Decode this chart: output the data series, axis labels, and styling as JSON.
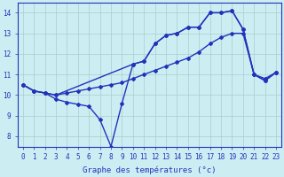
{
  "title": "Graphe des températures (°c)",
  "x_labels": [
    "0",
    "1",
    "2",
    "3",
    "4",
    "5",
    "6",
    "7",
    "8",
    "9",
    "10",
    "11",
    "12",
    "13",
    "14",
    "15",
    "16",
    "17",
    "18",
    "19",
    "20",
    "21",
    "22",
    "23"
  ],
  "line1": {
    "x": [
      0,
      1,
      2,
      3,
      4,
      5,
      6,
      7,
      8,
      9,
      10,
      11,
      12,
      13,
      14,
      15,
      16,
      17,
      18,
      19,
      20,
      21,
      22,
      23
    ],
    "y": [
      10.5,
      10.2,
      10.1,
      10.0,
      10.1,
      10.2,
      10.3,
      10.4,
      10.5,
      10.6,
      10.8,
      11.0,
      11.2,
      11.4,
      11.6,
      11.8,
      12.1,
      12.5,
      12.8,
      13.0,
      13.0,
      11.0,
      10.8,
      11.1
    ],
    "color": "#2233bb",
    "marker": "D",
    "markersize": 2.0,
    "linewidth": 1.0
  },
  "line2": {
    "x": [
      0,
      1,
      2,
      3,
      10,
      11,
      12,
      13,
      14,
      15,
      16,
      17,
      18,
      19,
      20,
      21,
      22,
      23
    ],
    "y": [
      10.5,
      10.2,
      10.1,
      10.0,
      11.5,
      11.65,
      12.5,
      12.9,
      13.0,
      13.3,
      13.3,
      14.0,
      14.0,
      14.1,
      13.2,
      11.0,
      10.7,
      11.1
    ],
    "color": "#2233bb",
    "marker": "D",
    "markersize": 2.0,
    "linewidth": 1.0
  },
  "line3": {
    "x": [
      0,
      1,
      2,
      3,
      4,
      5,
      6,
      7,
      8,
      9,
      10,
      11,
      12,
      13,
      14,
      15,
      16,
      17,
      18,
      19,
      20,
      21,
      22,
      23
    ],
    "y": [
      10.5,
      10.2,
      10.1,
      9.8,
      9.65,
      9.55,
      9.45,
      8.8,
      7.5,
      9.6,
      11.5,
      11.65,
      12.5,
      12.9,
      13.0,
      13.3,
      13.3,
      14.0,
      14.0,
      14.1,
      13.2,
      11.0,
      10.7,
      11.1
    ],
    "color": "#2233bb",
    "marker": "D",
    "markersize": 2.0,
    "linewidth": 1.0
  },
  "ylim": [
    7.5,
    14.5
  ],
  "yticks": [
    8,
    9,
    10,
    11,
    12,
    13,
    14
  ],
  "xlim": [
    -0.5,
    23.5
  ],
  "bg_color": "#cceef2",
  "grid_color": "#aacccc",
  "axis_color": "#2233bb",
  "label_color": "#2233bb",
  "tick_color": "#2233bb",
  "xlabel_fontsize": 6.5,
  "tick_fontsize": 5.5
}
